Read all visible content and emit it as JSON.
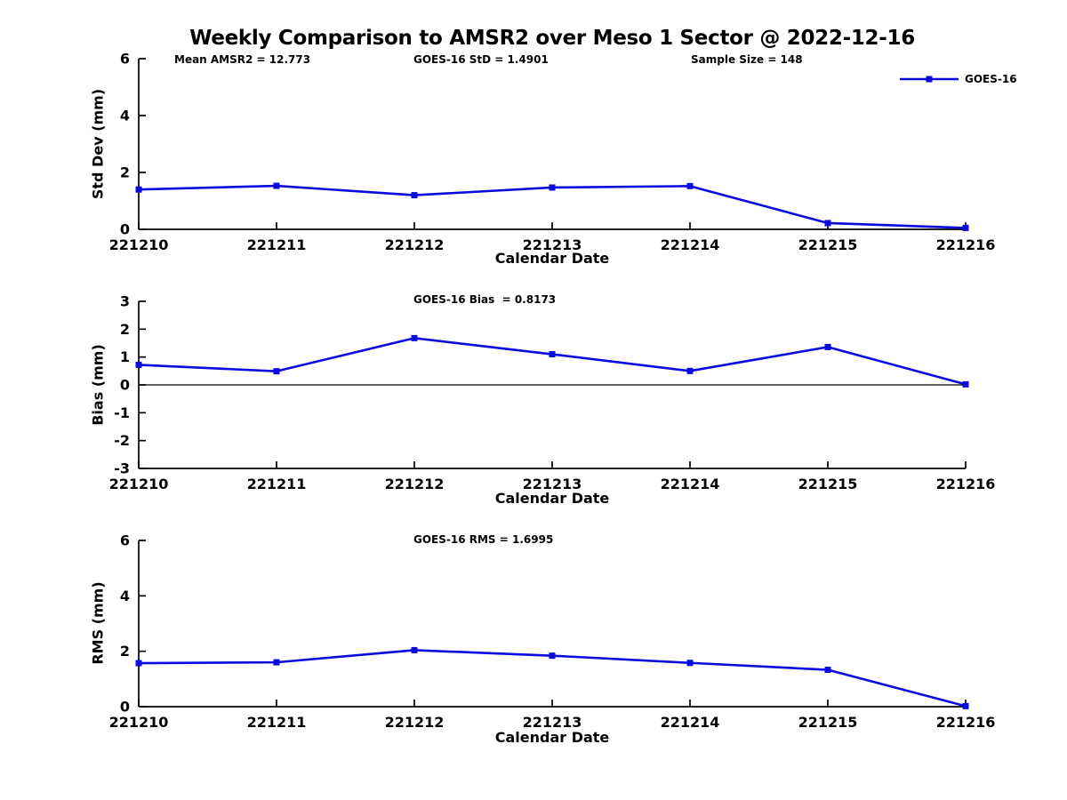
{
  "title": "Weekly Comparison to AMSR2 over Meso 1 Sector @ 2022-12-16",
  "legend": {
    "label": "GOES-16"
  },
  "colors": {
    "line": "#0a0adf",
    "axis": "#000000",
    "text": "#000000",
    "background": "#ffffff"
  },
  "chart_data": [
    {
      "type": "line",
      "title": "",
      "annotations": [
        "Mean AMSR2 = 12.773",
        "GOES-16 StD = 1.4901",
        "Sample Size = 148"
      ],
      "xlabel": "Calendar Date",
      "ylabel": "Std Dev (mm)",
      "categories": [
        "221210",
        "221211",
        "221212",
        "221213",
        "221214",
        "221215",
        "221216"
      ],
      "series": [
        {
          "name": "GOES-16",
          "values": [
            1.4,
            1.53,
            1.2,
            1.47,
            1.52,
            0.22,
            0.05
          ]
        }
      ],
      "ylim": [
        0,
        6
      ],
      "yticks": [
        0,
        2,
        4,
        6
      ],
      "zero_line": false,
      "grid": false,
      "legend_position": "top-right"
    },
    {
      "type": "line",
      "title": "GOES-16 Bias  = 0.8173",
      "annotations": [],
      "xlabel": "Calendar Date",
      "ylabel": "Bias (mm)",
      "categories": [
        "221210",
        "221211",
        "221212",
        "221213",
        "221214",
        "221215",
        "221216"
      ],
      "series": [
        {
          "name": "GOES-16",
          "values": [
            0.72,
            0.49,
            1.68,
            1.1,
            0.5,
            1.36,
            0.02
          ]
        }
      ],
      "ylim": [
        -3,
        3
      ],
      "yticks": [
        -3,
        -2,
        -1,
        0,
        1,
        2,
        3
      ],
      "zero_line": true,
      "grid": false,
      "legend_position": "none"
    },
    {
      "type": "line",
      "title": "GOES-16 RMS = 1.6995",
      "annotations": [],
      "xlabel": "Calendar Date",
      "ylabel": "RMS (mm)",
      "categories": [
        "221210",
        "221211",
        "221212",
        "221213",
        "221214",
        "221215",
        "221216"
      ],
      "series": [
        {
          "name": "GOES-16",
          "values": [
            1.57,
            1.6,
            2.04,
            1.84,
            1.58,
            1.33,
            0.02
          ]
        }
      ],
      "ylim": [
        0,
        6
      ],
      "yticks": [
        0,
        2,
        4,
        6
      ],
      "zero_line": false,
      "grid": false,
      "legend_position": "none"
    }
  ]
}
